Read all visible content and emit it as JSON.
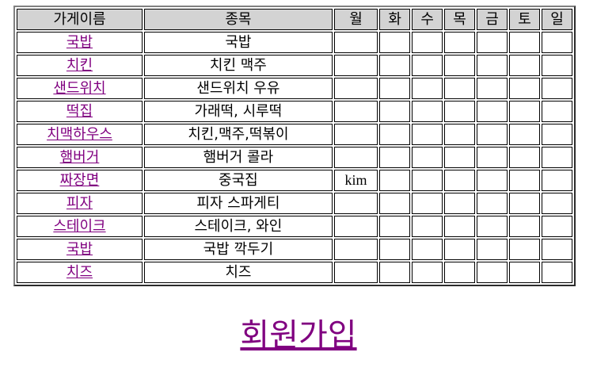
{
  "table": {
    "headers": {
      "store": "가게이름",
      "item": "종목",
      "days": [
        "월",
        "화",
        "수",
        "목",
        "금",
        "토",
        "일"
      ]
    },
    "rows": [
      {
        "store": "국밥",
        "item": "국밥",
        "days": [
          "",
          "",
          "",
          "",
          "",
          "",
          ""
        ]
      },
      {
        "store": "치킨",
        "item": "치킨 맥주",
        "days": [
          "",
          "",
          "",
          "",
          "",
          "",
          ""
        ]
      },
      {
        "store": "샌드위치",
        "item": "샌드위치 우유",
        "days": [
          "",
          "",
          "",
          "",
          "",
          "",
          ""
        ]
      },
      {
        "store": "떡집",
        "item": "가래떡, 시루떡",
        "days": [
          "",
          "",
          "",
          "",
          "",
          "",
          ""
        ]
      },
      {
        "store": "치맥하우스",
        "item": "치킨,맥주,떡볶이",
        "days": [
          "",
          "",
          "",
          "",
          "",
          "",
          ""
        ]
      },
      {
        "store": "햄버거",
        "item": "햄버거 콜라",
        "days": [
          "",
          "",
          "",
          "",
          "",
          "",
          ""
        ]
      },
      {
        "store": "짜장면",
        "item": "중국집",
        "days": [
          "kim",
          "",
          "",
          "",
          "",
          "",
          ""
        ]
      },
      {
        "store": "피자",
        "item": "피자 스파게티",
        "days": [
          "",
          "",
          "",
          "",
          "",
          "",
          ""
        ]
      },
      {
        "store": "스테이크",
        "item": "스테이크, 와인",
        "days": [
          "",
          "",
          "",
          "",
          "",
          "",
          ""
        ]
      },
      {
        "store": "국밥",
        "item": "국밥 깍두기",
        "days": [
          "",
          "",
          "",
          "",
          "",
          "",
          ""
        ]
      },
      {
        "store": "치즈",
        "item": "치즈",
        "days": [
          "",
          "",
          "",
          "",
          "",
          "",
          ""
        ]
      }
    ]
  },
  "signup_link": "회원가입",
  "colors": {
    "link": "#800080",
    "header_bg": "#d3d3d3",
    "border": "#000000"
  }
}
